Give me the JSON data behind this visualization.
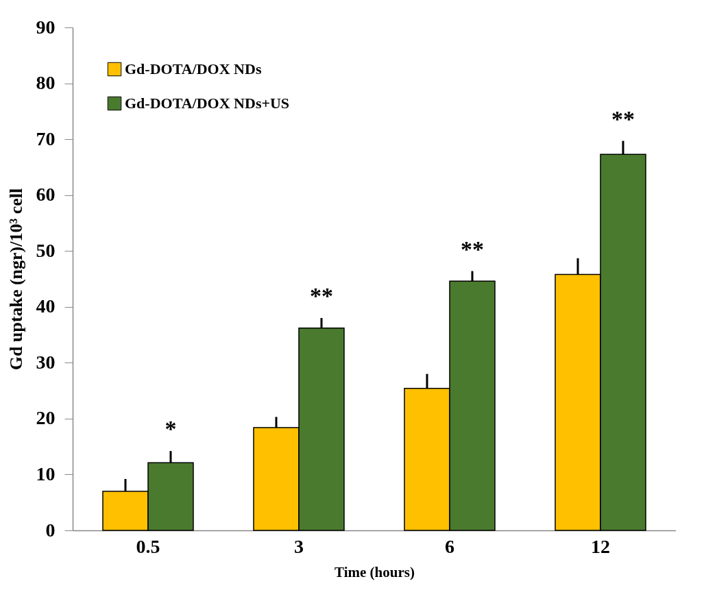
{
  "chart_data": {
    "type": "bar",
    "xlabel": "Time (hours)",
    "ylabel": "Gd uptake (ngr)/10³ cell",
    "categories": [
      "0.5",
      "3",
      "6",
      "12"
    ],
    "series": [
      {
        "name": "Gd-DOTA/DOX NDs",
        "color": "#ffc000",
        "values": [
          7.0,
          18.4,
          25.4,
          45.8
        ],
        "errors": [
          [
            7.0,
            9.2
          ],
          [
            18.4,
            20.3
          ],
          [
            25.4,
            28.0
          ],
          [
            45.8,
            48.7
          ]
        ]
      },
      {
        "name": "Gd-DOTA/DOX NDs+US",
        "color": "#4a7a2e",
        "values": [
          12.1,
          36.2,
          44.6,
          67.3
        ],
        "errors": [
          [
            12.1,
            14.2
          ],
          [
            36.2,
            38.0
          ],
          [
            44.6,
            46.4
          ],
          [
            67.3,
            69.7
          ]
        ]
      }
    ],
    "annotations": [
      "*",
      "**",
      "**",
      "**"
    ],
    "ylim": [
      0,
      90
    ],
    "yticks": [
      0,
      10,
      20,
      30,
      40,
      50,
      60,
      70,
      80,
      90
    ],
    "grid": false,
    "legend": "top left"
  }
}
